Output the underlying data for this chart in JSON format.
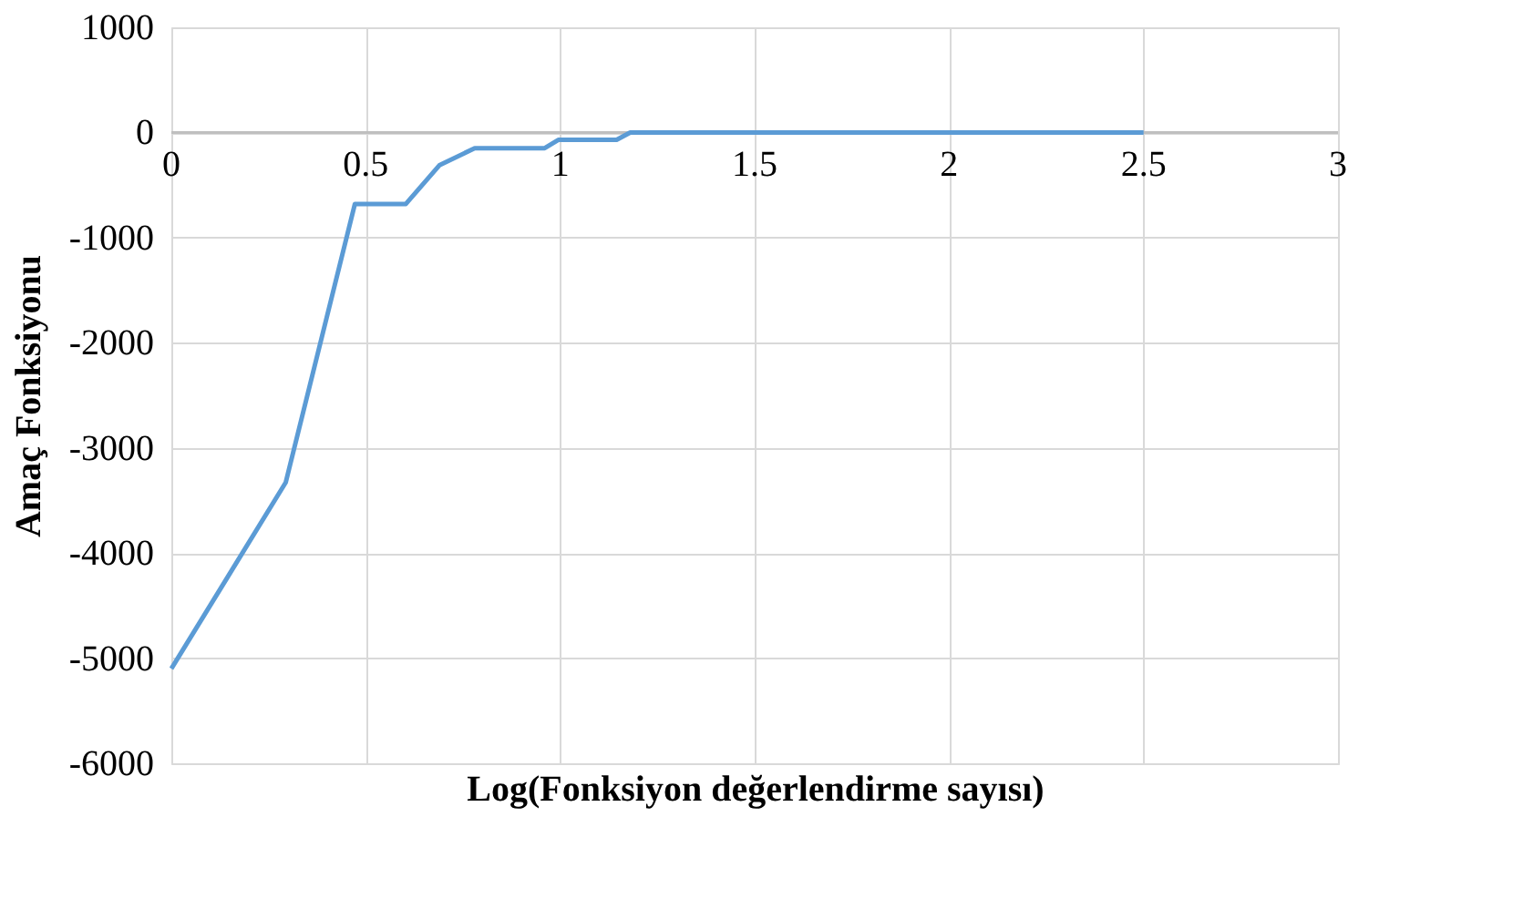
{
  "chart_data": {
    "type": "line",
    "xlabel": "Log(Fonksiyon değerlendirme sayısı)",
    "ylabel": "Amaç Fonksiyonu",
    "x": [
      0,
      0.294,
      0.472,
      0.603,
      0.69,
      0.78,
      0.96,
      0.995,
      1.145,
      1.18,
      2.5
    ],
    "series": [
      {
        "color": "#5b9bd5",
        "values": [
          -5100,
          -3330,
          -680,
          -680,
          -310,
          -150,
          -150,
          -70,
          -70,
          0,
          0
        ]
      }
    ],
    "xlim": [
      0,
      3
    ],
    "xticks": [
      0,
      0.5,
      1,
      1.5,
      2,
      2.5,
      3
    ],
    "ylim": [
      -6000,
      1000
    ],
    "yticks": [
      -6000,
      -5000,
      -4000,
      -3000,
      -2000,
      -1000,
      0,
      1000
    ],
    "grid": true,
    "marker": "none",
    "line_style": "solid"
  }
}
